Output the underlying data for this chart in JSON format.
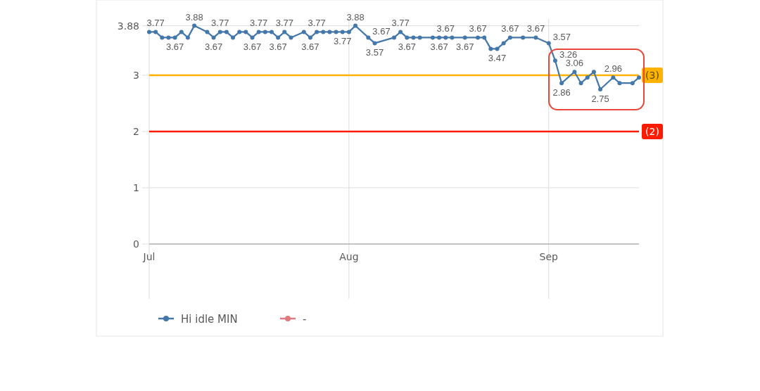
{
  "chart_data": {
    "type": "line",
    "x": [
      "--07-01",
      "--07-02",
      "--07-03",
      "--07-04",
      "--07-05",
      "--07-06",
      "--07-07",
      "--07-08",
      "--07-10",
      "--07-11",
      "--07-12",
      "--07-13",
      "--07-14",
      "--07-15",
      "--07-16",
      "--07-17",
      "--07-18",
      "--07-19",
      "--07-20",
      "--07-21",
      "--07-22",
      "--07-23",
      "--07-25",
      "--07-26",
      "--07-27",
      "--07-28",
      "--07-29",
      "--07-30",
      "--07-31",
      "--08-01",
      "--08-02",
      "--08-04",
      "--08-05",
      "--08-08",
      "--08-09",
      "--08-10",
      "--08-11",
      "--08-12",
      "--08-14",
      "--08-15",
      "--08-16",
      "--08-17",
      "--08-19",
      "--08-21",
      "--08-22",
      "--08-23",
      "--08-24",
      "--08-25",
      "--08-26",
      "--08-28",
      "--08-30",
      "--09-01",
      "--09-02",
      "--09-03",
      "--09-05",
      "--09-06",
      "--09-07",
      "--09-08",
      "--09-09",
      "--09-11",
      "--09-12",
      "--09-14",
      "--09-15"
    ],
    "series": [
      {
        "name": "Hi idle MIN",
        "color": "#4477aa",
        "values": [
          3.77,
          3.77,
          3.67,
          3.67,
          3.67,
          3.77,
          3.67,
          3.88,
          3.77,
          3.67,
          3.77,
          3.77,
          3.67,
          3.77,
          3.77,
          3.67,
          3.77,
          3.77,
          3.77,
          3.67,
          3.77,
          3.67,
          3.77,
          3.67,
          3.77,
          3.77,
          3.77,
          3.77,
          3.77,
          3.77,
          3.88,
          3.67,
          3.57,
          3.67,
          3.77,
          3.67,
          3.67,
          3.67,
          3.67,
          3.67,
          3.67,
          3.67,
          3.67,
          3.67,
          3.67,
          3.47,
          3.47,
          3.57,
          3.67,
          3.67,
          3.67,
          3.57,
          3.26,
          2.86,
          3.06,
          2.86,
          2.96,
          3.06,
          2.75,
          2.96,
          2.86,
          2.86,
          2.96
        ],
        "value_labels": [
          null,
          "3.77",
          null,
          null,
          "3.67",
          null,
          null,
          "3.88",
          null,
          "3.67",
          "3.77",
          null,
          null,
          null,
          null,
          "3.67",
          "3.77",
          null,
          null,
          "3.67",
          "3.77",
          null,
          null,
          "3.67",
          "3.77",
          null,
          null,
          null,
          "3.77",
          null,
          "3.88",
          "3.67",
          "3.57",
          null,
          "3.77",
          "3.67",
          null,
          null,
          null,
          "3.67",
          "3.67",
          null,
          "3.67",
          "3.67",
          null,
          null,
          "3.47",
          null,
          "3.67",
          null,
          "3.67",
          "3.57",
          "3.26",
          "2.86",
          "3.06",
          null,
          null,
          null,
          "2.75",
          "2.96",
          null,
          null,
          null
        ]
      },
      {
        "name": "-",
        "color": "#e07a80",
        "values": [
          null,
          null,
          null,
          null,
          null,
          null,
          null,
          null,
          null,
          null,
          null,
          null,
          null,
          null,
          null,
          null,
          null,
          null,
          null,
          null,
          null,
          null,
          null,
          null,
          null,
          null,
          null,
          null,
          null,
          null,
          null,
          null,
          null,
          null,
          null,
          null,
          null,
          null,
          null,
          null,
          null,
          null,
          null,
          null,
          null,
          null,
          null,
          null,
          null,
          null,
          null,
          null,
          null,
          null,
          null,
          null,
          null,
          null,
          null,
          null,
          null,
          null,
          null
        ]
      }
    ],
    "xlim": [
      "--07-01",
      "--09-15"
    ],
    "xticks": [
      {
        "value": "--07-01",
        "label": "Jul"
      },
      {
        "value": "--08-01",
        "label": "Aug"
      },
      {
        "value": "--09-01",
        "label": "Sep"
      }
    ],
    "ylim": [
      0,
      4
    ],
    "yticks": [
      0,
      1,
      2,
      3,
      3.88
    ],
    "ref_lines": [
      {
        "axis": "y",
        "value": 3,
        "label": "(3)",
        "color": "#ffb300"
      },
      {
        "axis": "y",
        "value": 2,
        "label": "(2)",
        "color": "#ff1a00"
      }
    ],
    "grid": true,
    "legend": "bottom",
    "marker": "circle",
    "line_style": "solid"
  }
}
